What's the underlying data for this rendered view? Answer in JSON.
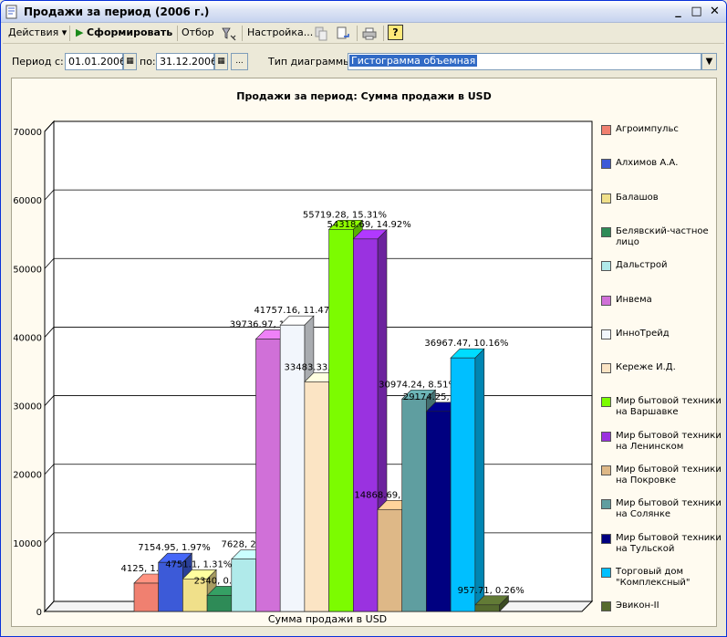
{
  "window": {
    "title": "Продажи за период (2006 г.)",
    "controls": {
      "minimize": "_",
      "maximize": "□",
      "close": "✕"
    }
  },
  "toolbar": {
    "actions_label": "Действия",
    "generate_label": "Сформировать",
    "filter_label": "Отбор",
    "settings_label": "Настройка...",
    "help_label": "?"
  },
  "filter": {
    "period_from_label": "Период с:",
    "period_from_value": "01.01.2006",
    "period_to_label": "по:",
    "period_to_value": "31.12.2006",
    "more_label": "...",
    "chart_type_label": "Тип диаграммы:",
    "chart_type_value": "Гистограмма объемная"
  },
  "chart_data": {
    "type": "bar",
    "title": "Продажи за период: Сумма продажи в USD",
    "xlabel": "Сумма продажи в USD",
    "ylabel": "",
    "ylim": [
      0,
      70000
    ],
    "yticks": [
      0,
      10000,
      20000,
      30000,
      40000,
      50000,
      60000,
      70000
    ],
    "grid": true,
    "legend_position": "right",
    "series": [
      {
        "name": "Агроимпульс",
        "value": 4125,
        "label": "4125, 1.13%",
        "color": "#f08070"
      },
      {
        "name": "Алхимов А.А.",
        "value": 7154.95,
        "label": "7154.95, 1.97%",
        "color": "#3c5ad8"
      },
      {
        "name": "Балашов",
        "value": 4751.1,
        "label": "4751.1, 1.31%",
        "color": "#f0e08a"
      },
      {
        "name": "Белявский-частное лицо",
        "value": 2340,
        "label": "2340, 0.64%",
        "color": "#2e8b57"
      },
      {
        "name": "Дальстрой",
        "value": 7628,
        "label": "7628, 2.1%",
        "color": "#b0eaea"
      },
      {
        "name": "Инвема",
        "value": 39736.97,
        "label": "39736.97, 10.92%",
        "color": "#d070d8"
      },
      {
        "name": "ИнноТрейд",
        "value": 41757.16,
        "label": "41757.16, 11.47%",
        "color": "#f2f6fc"
      },
      {
        "name": "Кереже И.Д.",
        "value": 33483.33,
        "label": "33483.33, 9.2%",
        "color": "#fbe4c4"
      },
      {
        "name": "Мир бытовой техники на Варшавке",
        "value": 55719.28,
        "label": "55719.28, 15.31%",
        "color": "#7cfc00"
      },
      {
        "name": "Мир бытовой техники на Ленинском",
        "value": 54318.69,
        "label": "54318.69, 14.92%",
        "color": "#9a32e0"
      },
      {
        "name": "Мир бытовой техники на Покровке",
        "value": 14868.69,
        "label": "14868.69, 4.09%",
        "color": "#deb887"
      },
      {
        "name": "Мир бытовой техники на Солянке",
        "value": 30974.24,
        "label": "30974.24, 8.51%",
        "color": "#5f9ea0"
      },
      {
        "name": "Мир бытовой техники на Тульской",
        "value": 29174.25,
        "label": "29174.25, 8.02%",
        "color": "#000080"
      },
      {
        "name": "Торговый дом \"Комплексный\"",
        "value": 36967.47,
        "label": "36967.47, 10.16%",
        "color": "#00bfff"
      },
      {
        "name": "Эвикон-II",
        "value": 957.71,
        "label": "957.71, 0.26%",
        "color": "#556b2f"
      }
    ]
  }
}
